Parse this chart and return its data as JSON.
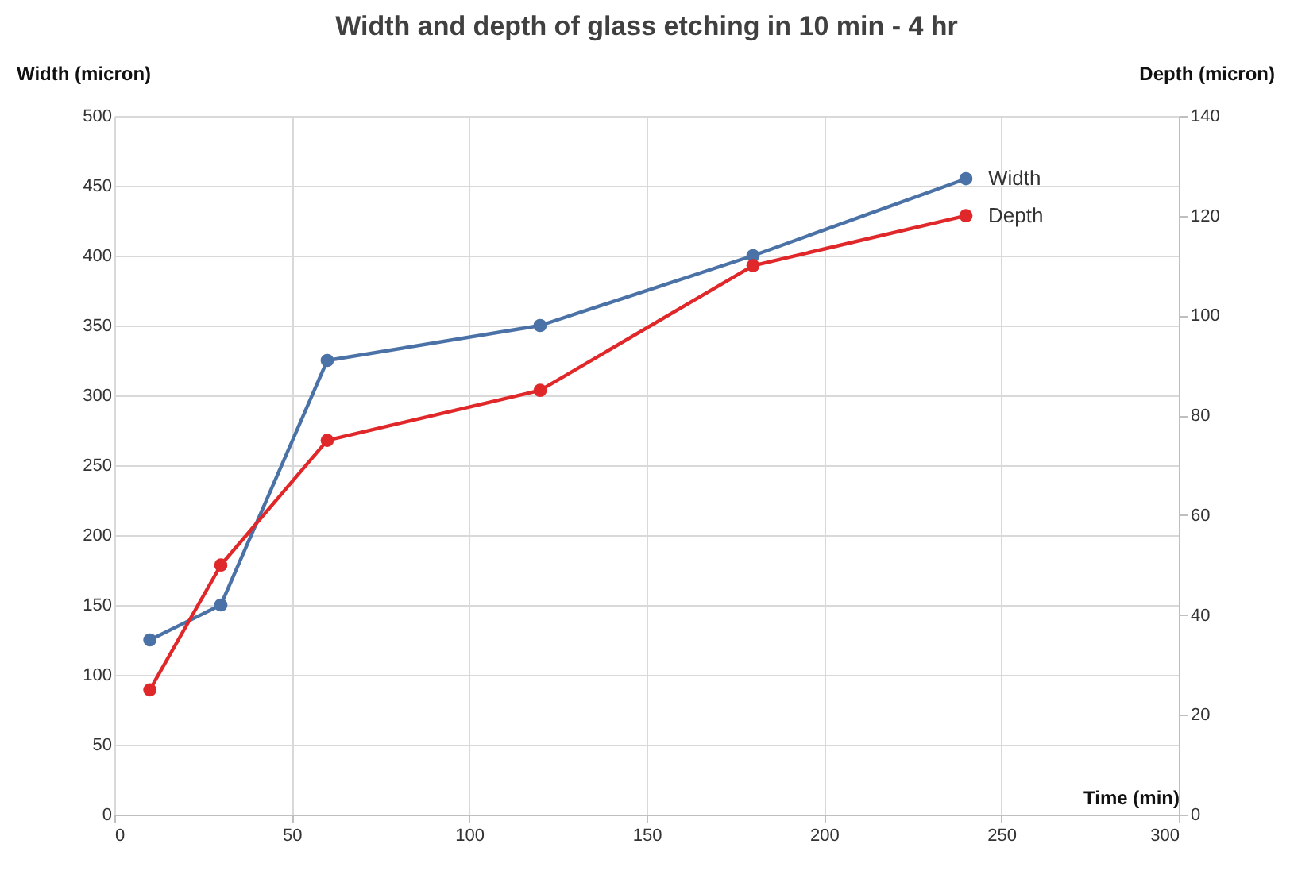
{
  "chart_data": {
    "type": "line",
    "title": "Width and depth of glass etching in 10 min - 4 hr",
    "xlabel": "Time (min)",
    "ylabel": "Width (micron)",
    "y2label": "Depth (micron)",
    "x": [
      10,
      30,
      60,
      120,
      180,
      240
    ],
    "series": [
      {
        "name": "Width",
        "color": "#4a72a6",
        "values": [
          125,
          150,
          325,
          350,
          400,
          455
        ]
      },
      {
        "name": "Depth",
        "color": "#e0282b",
        "axis": "y2",
        "values": [
          25,
          50,
          75,
          85,
          110,
          120
        ]
      }
    ],
    "xlim": [
      0,
      300
    ],
    "xticks": [
      0,
      50,
      100,
      150,
      200,
      250,
      300
    ],
    "ylim": [
      0,
      500
    ],
    "yticks": [
      0,
      50,
      100,
      150,
      200,
      250,
      300,
      350,
      400,
      450,
      500
    ],
    "y2lim": [
      0,
      140
    ],
    "y2ticks": [
      0,
      20,
      40,
      60,
      80,
      100,
      120,
      140
    ],
    "grid": true,
    "marker": "circle",
    "line_style": "solid"
  }
}
